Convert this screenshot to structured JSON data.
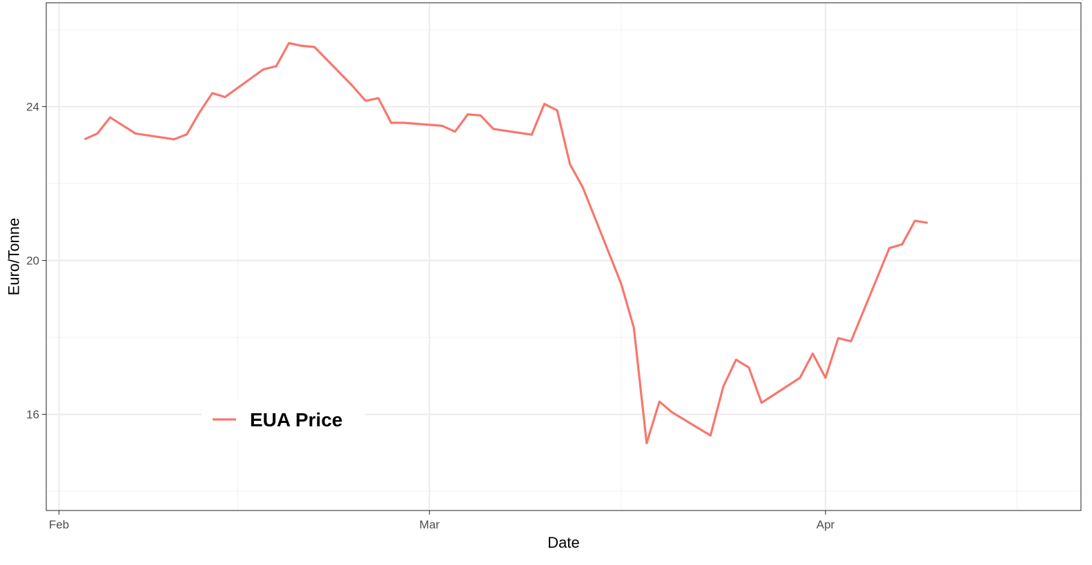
{
  "chart_data": {
    "type": "line",
    "title": "",
    "xlabel": "Date",
    "ylabel": "Euro/Tonne",
    "x_type": "date",
    "xlim": [
      "2020-01-31",
      "2020-04-21"
    ],
    "ylim": [
      13.5,
      26.7
    ],
    "x_ticks": [
      {
        "date": "2020-02-01",
        "label": "Feb"
      },
      {
        "date": "2020-03-01",
        "label": "Mar"
      },
      {
        "date": "2020-04-01",
        "label": "Apr"
      }
    ],
    "x_minor_ticks": [
      "2020-02-15",
      "2020-03-16",
      "2020-04-16"
    ],
    "y_ticks": [
      16,
      20,
      24
    ],
    "y_minor_ticks": [
      14,
      18,
      22,
      26
    ],
    "grid": true,
    "legend": {
      "position": "bottom-left",
      "entries": [
        "EUA Price"
      ]
    },
    "series": [
      {
        "name": "EUA Price",
        "color": "#F8766D",
        "points": [
          [
            "2020-02-03",
            23.15
          ],
          [
            "2020-02-04",
            23.3
          ],
          [
            "2020-02-05",
            23.72
          ],
          [
            "2020-02-07",
            23.3
          ],
          [
            "2020-02-10",
            23.15
          ],
          [
            "2020-02-11",
            23.28
          ],
          [
            "2020-02-12",
            23.85
          ],
          [
            "2020-02-13",
            24.35
          ],
          [
            "2020-02-14",
            24.25
          ],
          [
            "2020-02-17",
            24.97
          ],
          [
            "2020-02-18",
            25.05
          ],
          [
            "2020-02-19",
            25.65
          ],
          [
            "2020-02-20",
            25.58
          ],
          [
            "2020-02-21",
            25.55
          ],
          [
            "2020-02-24",
            24.53
          ],
          [
            "2020-02-25",
            24.15
          ],
          [
            "2020-02-26",
            24.22
          ],
          [
            "2020-02-27",
            23.58
          ],
          [
            "2020-02-28",
            23.58
          ],
          [
            "2020-03-02",
            23.5
          ],
          [
            "2020-03-03",
            23.35
          ],
          [
            "2020-03-04",
            23.8
          ],
          [
            "2020-03-05",
            23.77
          ],
          [
            "2020-03-06",
            23.42
          ],
          [
            "2020-03-09",
            23.27
          ],
          [
            "2020-03-10",
            24.07
          ],
          [
            "2020-03-11",
            23.9
          ],
          [
            "2020-03-12",
            22.5
          ],
          [
            "2020-03-13",
            21.9
          ],
          [
            "2020-03-16",
            19.4
          ],
          [
            "2020-03-17",
            18.25
          ],
          [
            "2020-03-18",
            15.25
          ],
          [
            "2020-03-19",
            16.33
          ],
          [
            "2020-03-20",
            16.05
          ],
          [
            "2020-03-23",
            15.45
          ],
          [
            "2020-03-24",
            16.72
          ],
          [
            "2020-03-25",
            17.42
          ],
          [
            "2020-03-26",
            17.22
          ],
          [
            "2020-03-27",
            16.3
          ],
          [
            "2020-03-30",
            16.95
          ],
          [
            "2020-03-31",
            17.58
          ],
          [
            "2020-04-01",
            16.95
          ],
          [
            "2020-04-02",
            17.98
          ],
          [
            "2020-04-03",
            17.9
          ],
          [
            "2020-04-06",
            20.32
          ],
          [
            "2020-04-07",
            20.42
          ],
          [
            "2020-04-08",
            21.03
          ],
          [
            "2020-04-09",
            20.98
          ]
        ]
      }
    ]
  }
}
